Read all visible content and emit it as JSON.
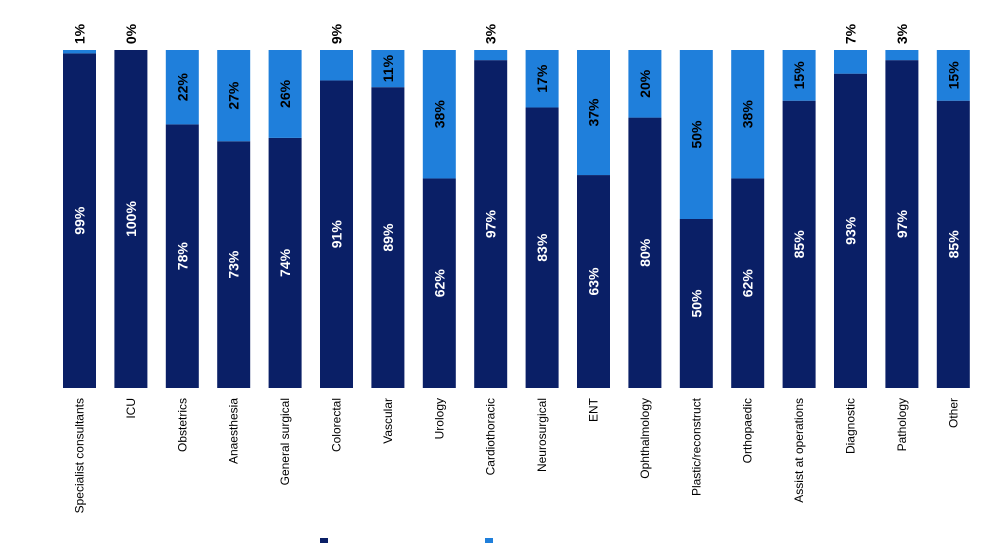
{
  "chart_data": {
    "type": "bar",
    "stacked": true,
    "percent_stacked": true,
    "categories": [
      "Specialist consultants",
      "ICU",
      "Obstetrics",
      "Anaesthesia",
      "General surgical",
      "Colorectal",
      "Vascular",
      "Urology",
      "Cardiothoracic",
      "Neurosurgical",
      "ENT",
      "Ophthalmology",
      "Plastic/reconstruct",
      "Orthopaedic",
      "Assist at operations",
      "Diagnostic",
      "Pathology",
      "Other"
    ],
    "series": [
      {
        "values": [
          99,
          100,
          78,
          73,
          74,
          91,
          89,
          62,
          97,
          83,
          63,
          80,
          50,
          62,
          85,
          93,
          97,
          85
        ],
        "color": "#0a1f66"
      },
      {
        "values": [
          1,
          0,
          22,
          27,
          26,
          9,
          11,
          38,
          3,
          17,
          37,
          20,
          50,
          38,
          15,
          7,
          3,
          15
        ],
        "color": "#1f7fdb"
      }
    ],
    "value_suffix": "%",
    "ylim": [
      0,
      100
    ],
    "grid": false,
    "legend": "bottom"
  }
}
